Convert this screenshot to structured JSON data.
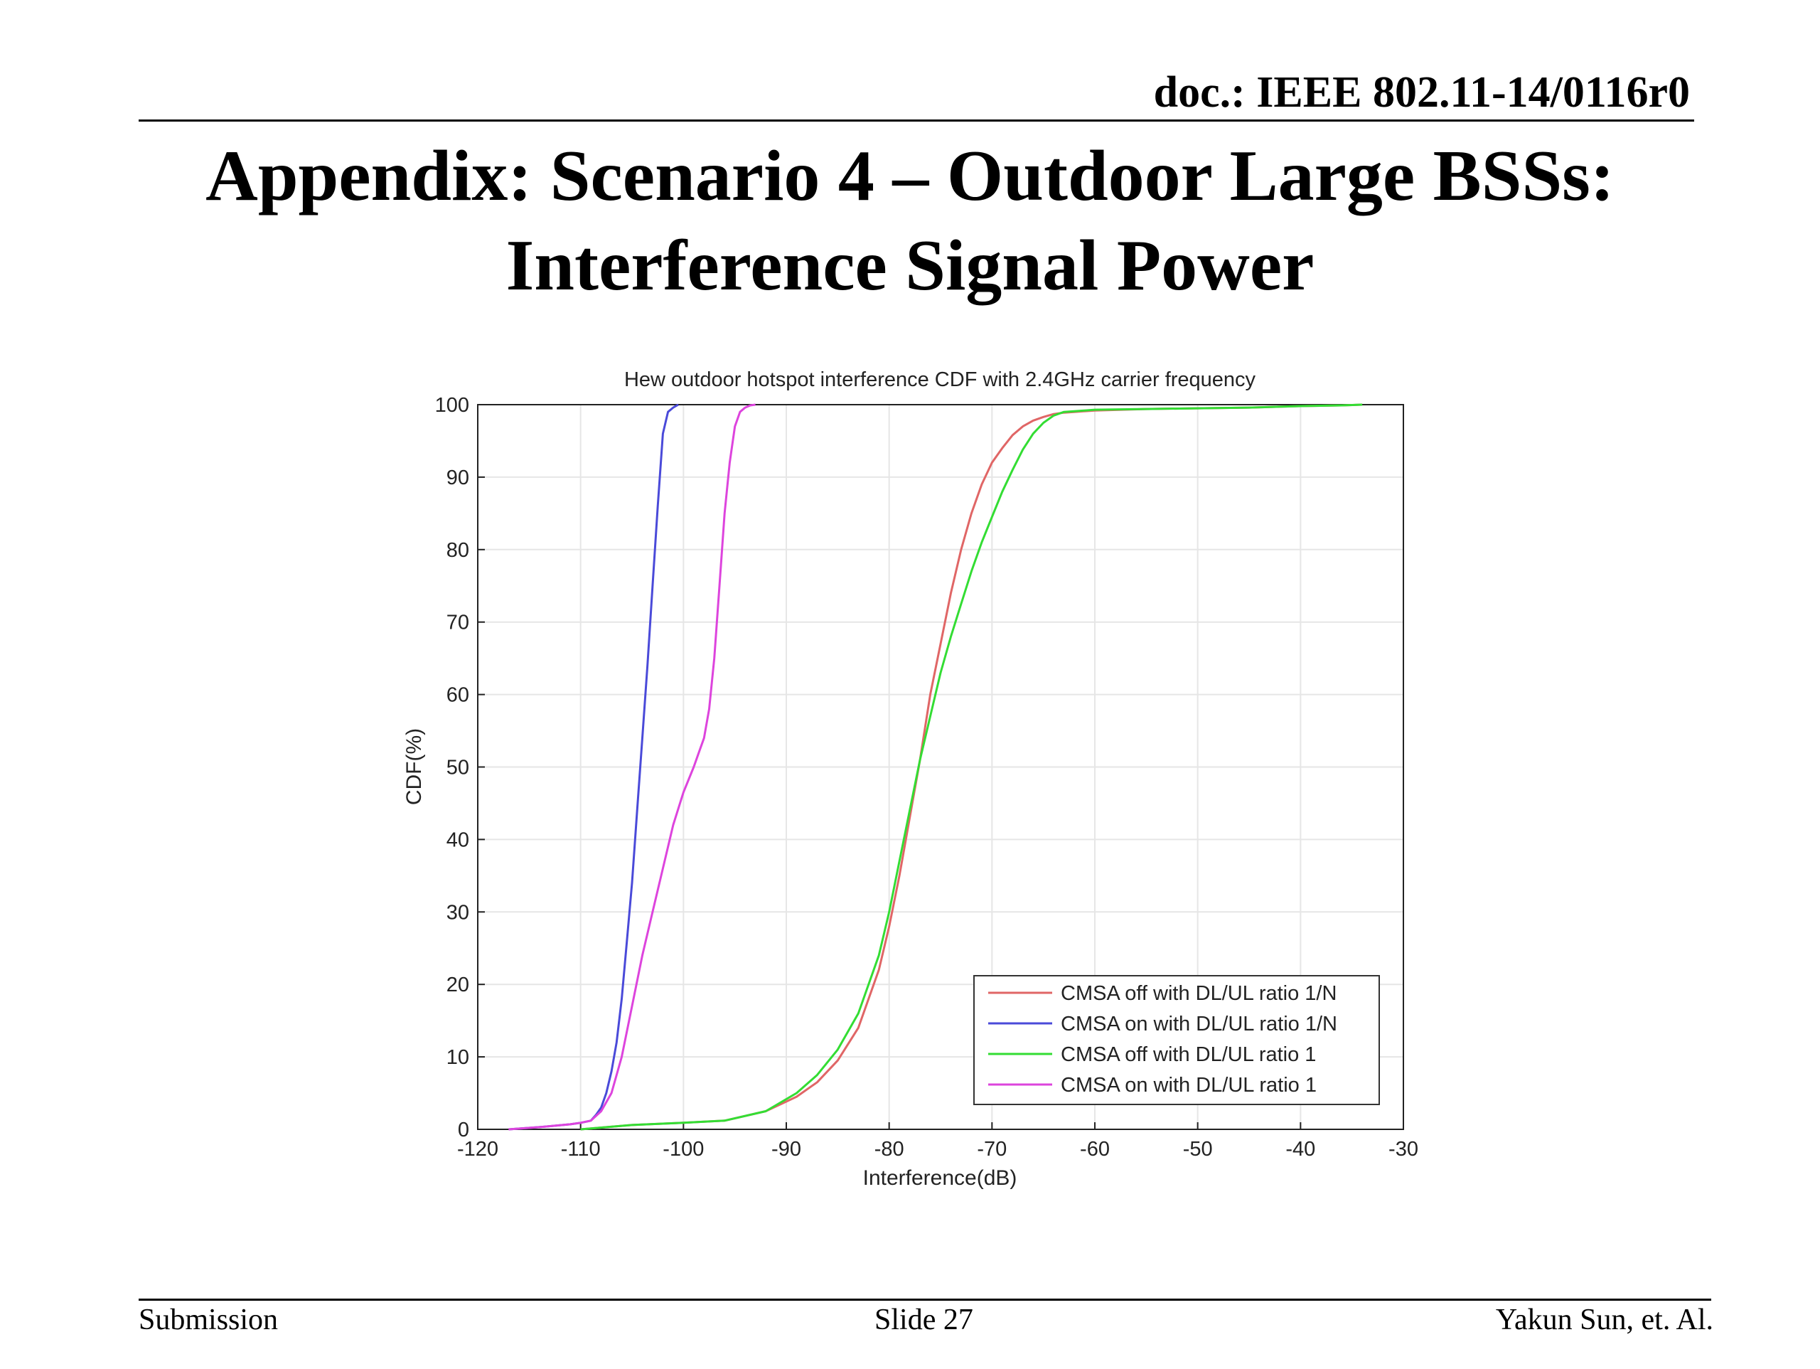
{
  "header": {
    "doc_id": "doc.: IEEE 802.11-14/0116r0"
  },
  "slide": {
    "title_line1": "Appendix: Scenario 4 – Outdoor Large BSSs:",
    "title_line2": "Interference Signal Power"
  },
  "footer": {
    "left": "Submission",
    "center": "Slide 27",
    "right": "Yakun Sun, et. Al."
  },
  "chart_data": {
    "type": "line",
    "title": "Hew outdoor hotspot interference CDF with 2.4GHz carrier frequency",
    "xlabel": "Interference(dB)",
    "ylabel": "CDF(%)",
    "xlim": [
      -120,
      -30
    ],
    "ylim": [
      0,
      100
    ],
    "xticks": [
      -120,
      -110,
      -100,
      -90,
      -80,
      -70,
      -60,
      -50,
      -40,
      -30
    ],
    "yticks": [
      0,
      10,
      20,
      30,
      40,
      50,
      60,
      70,
      80,
      90,
      100
    ],
    "grid": true,
    "legend_position": "bottom-right",
    "series": [
      {
        "name": "CMSA off with DL/UL ratio 1/N",
        "color": "#e06666",
        "x": [
          -110,
          -105,
          -100,
          -96,
          -92,
          -89,
          -87,
          -85,
          -83,
          -81,
          -80,
          -79,
          -78,
          -77,
          -76,
          -75,
          -74,
          -73,
          -72,
          -71,
          -70,
          -69,
          -68,
          -67,
          -66,
          -65,
          -64,
          -63,
          -62,
          -61,
          -60,
          -55,
          -50,
          -45,
          -40,
          -36,
          -34
        ],
        "y": [
          0,
          0.6,
          0.9,
          1.2,
          2.5,
          4.5,
          6.5,
          9.5,
          14,
          22,
          28,
          35,
          43,
          51,
          60,
          67,
          74,
          80,
          85,
          89,
          92,
          94,
          95.8,
          97,
          97.8,
          98.3,
          98.7,
          98.9,
          99,
          99.1,
          99.2,
          99.4,
          99.5,
          99.6,
          99.8,
          99.9,
          100
        ]
      },
      {
        "name": "CMSA on with DL/UL ratio 1/N",
        "color": "#4a4ad9",
        "x": [
          -117,
          -114,
          -111,
          -110,
          -109,
          -108.5,
          -108,
          -107.5,
          -107,
          -106.5,
          -106,
          -105.5,
          -105,
          -104.5,
          -104,
          -103.5,
          -103,
          -102.5,
          -102,
          -101.5,
          -101,
          -100.5
        ],
        "y": [
          0,
          0.3,
          0.7,
          0.9,
          1.2,
          2,
          3,
          5,
          8,
          12,
          18,
          26,
          34,
          44,
          54,
          64,
          75,
          86,
          96,
          99,
          99.6,
          100
        ]
      },
      {
        "name": "CMSA off with DL/UL ratio 1",
        "color": "#33dd33",
        "x": [
          -110,
          -105,
          -100,
          -96,
          -92,
          -89,
          -87,
          -85,
          -83,
          -81,
          -80,
          -79,
          -78,
          -77,
          -76,
          -75,
          -74,
          -73,
          -72,
          -71,
          -70,
          -69,
          -68,
          -67,
          -66,
          -65,
          -64,
          -63,
          -62,
          -61,
          -60,
          -55,
          -50,
          -45,
          -40,
          -36,
          -34
        ],
        "y": [
          0,
          0.6,
          0.9,
          1.2,
          2.5,
          5,
          7.5,
          11,
          16,
          24,
          30,
          37,
          44,
          51,
          57,
          63,
          68,
          72.5,
          77,
          81,
          84.5,
          88,
          91,
          93.8,
          96,
          97.5,
          98.5,
          99,
          99.1,
          99.2,
          99.3,
          99.4,
          99.5,
          99.6,
          99.8,
          99.9,
          100
        ]
      },
      {
        "name": "CMSA on with DL/UL ratio 1",
        "color": "#dd44dd",
        "x": [
          -117,
          -114,
          -111,
          -110,
          -109,
          -108,
          -107,
          -106,
          -105,
          -104,
          -103,
          -102,
          -101,
          -100,
          -99,
          -98.5,
          -98,
          -97.5,
          -97,
          -96.5,
          -96,
          -95.5,
          -95,
          -94.5,
          -94,
          -93.5,
          -93
        ],
        "y": [
          0,
          0.3,
          0.7,
          0.9,
          1.2,
          2.5,
          5,
          10,
          17,
          24,
          30,
          36,
          42,
          46.5,
          50,
          52,
          54,
          58,
          65,
          75,
          85,
          92,
          97,
          99,
          99.6,
          99.9,
          100
        ]
      }
    ]
  }
}
